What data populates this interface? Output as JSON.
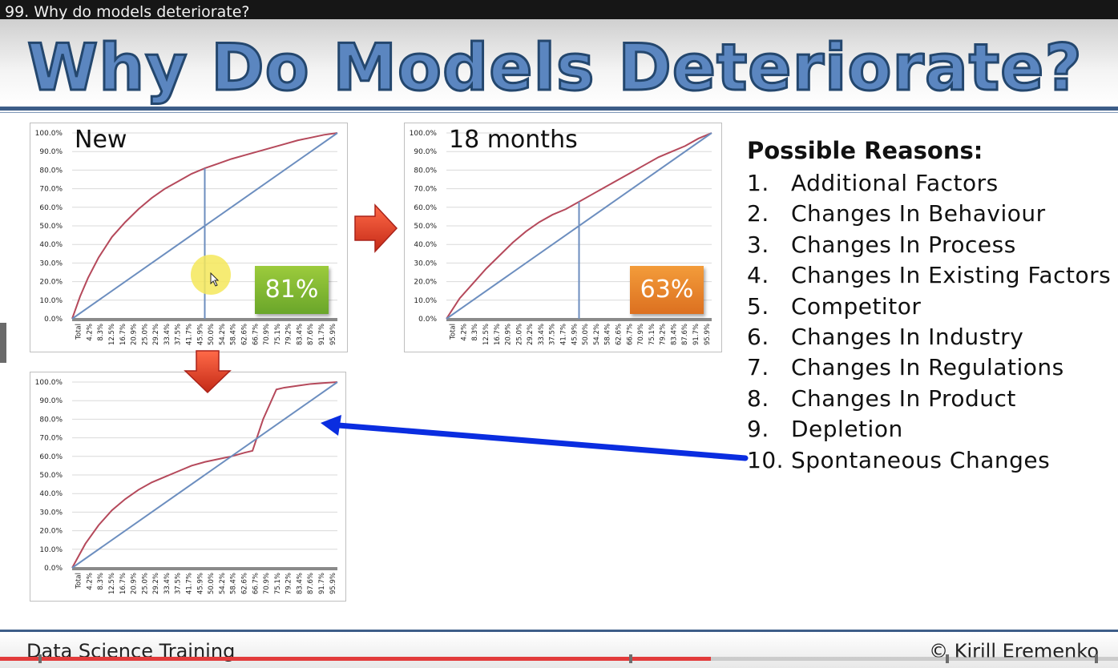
{
  "video": {
    "title": "99. Why do models deteriorate?",
    "progress": 0.636
  },
  "slide": {
    "title": "Why Do Models Deteriorate?",
    "footer_left": "Data Science Training",
    "footer_right": "© Kirill Eremenko"
  },
  "icons": {
    "right_arrow": "right-arrow-icon",
    "down_arrow": "down-arrow-icon",
    "pointer": "blue-pointer-arrow-icon",
    "cursor": "mouse-cursor-icon"
  },
  "colors": {
    "cap_curve": "#b5495b",
    "diagonal": "#6c8ebf",
    "title_fill": "#5b86c0",
    "title_stroke": "#24476e",
    "arrow_red": "#e03826",
    "arrow_blue": "#0a2de0",
    "progress": "#e23b3b"
  },
  "chart_data": [
    {
      "type": "line",
      "label": "New",
      "badge": "81%",
      "y_ticks": [
        "0.0%",
        "10.0%",
        "20.0%",
        "30.0%",
        "40.0%",
        "50.0%",
        "60.0%",
        "70.0%",
        "80.0%",
        "90.0%",
        "100.0%"
      ],
      "x_ticks": [
        "Total",
        "4.2%",
        "8.3%",
        "12.5%",
        "16.7%",
        "20.9%",
        "25.0%",
        "29.2%",
        "33.4%",
        "37.5%",
        "41.7%",
        "45.9%",
        "50.0%",
        "54.2%",
        "58.4%",
        "62.6%",
        "66.7%",
        "70.9%",
        "75.1%",
        "79.2%",
        "83.4%",
        "87.6%",
        "91.7%",
        "95.9%"
      ],
      "ylim": [
        0,
        100
      ],
      "marker_x": 50,
      "series": [
        {
          "name": "CAP curve",
          "x": [
            0,
            3,
            6,
            10,
            15,
            20,
            25,
            30,
            35,
            40,
            45,
            50,
            55,
            60,
            65,
            70,
            75,
            80,
            85,
            90,
            95,
            100
          ],
          "y": [
            0,
            12,
            22,
            33,
            44,
            52,
            59,
            65,
            70,
            74,
            78,
            81,
            83.5,
            86,
            88,
            90,
            92,
            94,
            96,
            97.5,
            99,
            100
          ]
        },
        {
          "name": "Random",
          "x": [
            0,
            100
          ],
          "y": [
            0,
            100
          ]
        }
      ]
    },
    {
      "type": "line",
      "label": "18 months",
      "badge": "63%",
      "y_ticks": [
        "0.0%",
        "10.0%",
        "20.0%",
        "30.0%",
        "40.0%",
        "50.0%",
        "60.0%",
        "70.0%",
        "80.0%",
        "90.0%",
        "100.0%"
      ],
      "x_ticks": [
        "Total",
        "4.2%",
        "8.3%",
        "12.5%",
        "16.7%",
        "20.9%",
        "25.0%",
        "29.2%",
        "33.4%",
        "37.5%",
        "41.7%",
        "45.9%",
        "50.0%",
        "54.2%",
        "58.4%",
        "62.6%",
        "66.7%",
        "70.9%",
        "75.1%",
        "79.2%",
        "83.4%",
        "87.6%",
        "91.7%",
        "95.9%"
      ],
      "ylim": [
        0,
        100
      ],
      "marker_x": 50,
      "series": [
        {
          "name": "CAP curve",
          "x": [
            0,
            5,
            10,
            15,
            20,
            25,
            30,
            35,
            40,
            45,
            50,
            55,
            60,
            65,
            70,
            75,
            80,
            85,
            90,
            95,
            100
          ],
          "y": [
            0,
            11,
            19,
            27,
            34,
            41,
            47,
            52,
            56,
            59,
            63,
            67,
            71,
            75,
            79,
            83,
            87,
            90,
            93,
            97,
            100
          ]
        },
        {
          "name": "Random",
          "x": [
            0,
            100
          ],
          "y": [
            0,
            100
          ]
        }
      ]
    },
    {
      "type": "line",
      "label": "",
      "badge": "",
      "y_ticks": [
        "0.0%",
        "10.0%",
        "20.0%",
        "30.0%",
        "40.0%",
        "50.0%",
        "60.0%",
        "70.0%",
        "80.0%",
        "90.0%",
        "100.0%"
      ],
      "x_ticks": [
        "Total",
        "4.2%",
        "8.3%",
        "12.5%",
        "16.7%",
        "20.9%",
        "25.0%",
        "29.2%",
        "33.4%",
        "37.5%",
        "41.7%",
        "45.9%",
        "50.0%",
        "54.2%",
        "58.4%",
        "62.6%",
        "66.7%",
        "70.9%",
        "75.1%",
        "79.2%",
        "83.4%",
        "87.6%",
        "91.7%",
        "95.9%"
      ],
      "ylim": [
        0,
        100
      ],
      "marker_x": null,
      "series": [
        {
          "name": "CAP curve",
          "x": [
            0,
            5,
            10,
            15,
            20,
            25,
            30,
            35,
            40,
            45,
            50,
            55,
            60,
            65,
            68,
            72,
            77,
            80,
            85,
            90,
            95,
            100
          ],
          "y": [
            0,
            13,
            23,
            31,
            37,
            42,
            46,
            49,
            52,
            55,
            57,
            58.5,
            60,
            62,
            63,
            80,
            96,
            97,
            98,
            99,
            99.5,
            100
          ]
        },
        {
          "name": "Random",
          "x": [
            0,
            100
          ],
          "y": [
            0,
            100
          ]
        }
      ]
    }
  ],
  "reasons": {
    "title": "Possible Reasons:",
    "items": [
      {
        "num": "1.",
        "label": "Additional Factors"
      },
      {
        "num": "2.",
        "label": "Changes In Behaviour"
      },
      {
        "num": "3.",
        "label": "Changes In Process"
      },
      {
        "num": "4.",
        "label": "Changes In Existing Factors"
      },
      {
        "num": "5.",
        "label": "Competitor"
      },
      {
        "num": "6.",
        "label": "Changes In Industry"
      },
      {
        "num": "7.",
        "label": "Changes In Regulations"
      },
      {
        "num": "8.",
        "label": "Changes In Product"
      },
      {
        "num": "9.",
        "label": "Depletion"
      },
      {
        "num": "10.",
        "label": "Spontaneous Changes"
      }
    ]
  }
}
